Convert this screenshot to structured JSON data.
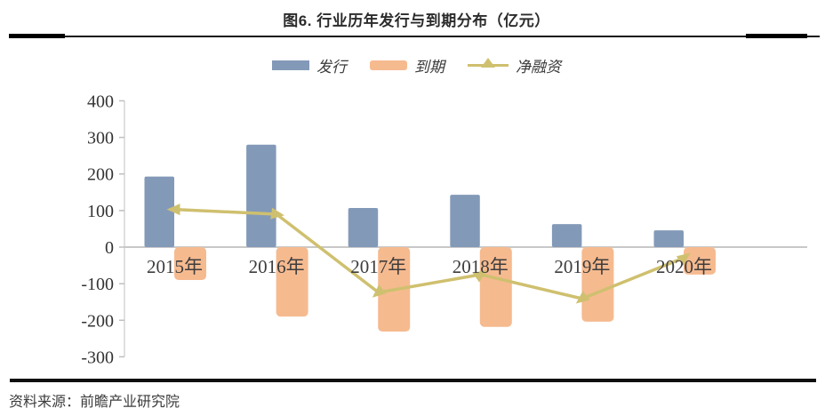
{
  "page": {
    "title": "图6. 行业历年发行与到期分布（亿元）",
    "source": "资料来源：前瞻产业研究院"
  },
  "colors": {
    "issuance_bar": "#8399B8",
    "maturity_bar": "#F6BA8F",
    "net_line": "#CFC06F",
    "axis": "#C8C8C8",
    "tick_text": "#333333",
    "year_text": "#3d3d3d"
  },
  "chart_data": {
    "type": "bar",
    "subtype": "bar-and-line-combo",
    "title": "图6. 行业历年发行与到期分布（亿元）",
    "xlabel": "",
    "ylabel": "",
    "unit": "亿元",
    "categories": [
      "2015年",
      "2016年",
      "2017年",
      "2018年",
      "2019年",
      "2020年"
    ],
    "series": [
      {
        "name": "发行",
        "type": "bar",
        "color": "#8399B8",
        "values": [
          193,
          280,
          107,
          143,
          63,
          46
        ]
      },
      {
        "name": "到期",
        "type": "bar",
        "color": "#F6BA8F",
        "values": [
          -90,
          -190,
          -231,
          -218,
          -204,
          -75
        ]
      },
      {
        "name": "净融资",
        "type": "line",
        "color": "#CFC06F",
        "marker": "triangle",
        "values": [
          103,
          90,
          -124,
          -75,
          -141,
          -29
        ]
      }
    ],
    "ylim": [
      -300,
      400
    ],
    "yticks": [
      400,
      300,
      200,
      100,
      0,
      -100,
      -200,
      -300
    ],
    "grid": false,
    "legend_position": "top"
  }
}
